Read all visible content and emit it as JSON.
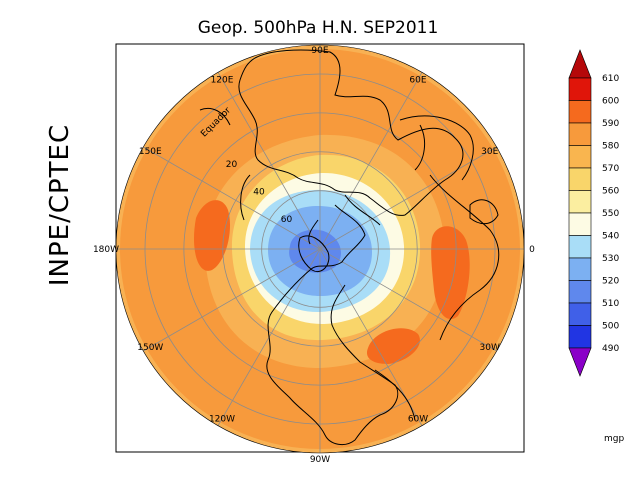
{
  "title": "Geop. 500hPa H.N. SEP2011",
  "side_label": "INPE/CPTEC",
  "map": {
    "projection": "north-polar-stereographic",
    "longitude_labels": [
      {
        "text": "90E",
        "lon": 90
      },
      {
        "text": "60E",
        "lon": 60
      },
      {
        "text": "30E",
        "lon": 30
      },
      {
        "text": "0",
        "lon": 0
      },
      {
        "text": "30W",
        "lon": -30
      },
      {
        "text": "60W",
        "lon": -60
      },
      {
        "text": "90W",
        "lon": -90
      },
      {
        "text": "120W",
        "lon": -120
      },
      {
        "text": "150W",
        "lon": -150
      },
      {
        "text": "180W",
        "lon": 180
      },
      {
        "text": "150E",
        "lon": 150
      },
      {
        "text": "120E",
        "lon": 120
      }
    ],
    "latitude_labels": [
      {
        "text": "Equador",
        "lat": 0
      },
      {
        "text": "20",
        "lat": 20
      },
      {
        "text": "40",
        "lat": 40
      },
      {
        "text": "60",
        "lat": 60
      }
    ]
  },
  "colorbar": {
    "unit": "mgp",
    "levels": [
      "610",
      "600",
      "590",
      "580",
      "570",
      "560",
      "550",
      "540",
      "530",
      "520",
      "510",
      "500",
      "490"
    ],
    "colors": [
      "#e0150a",
      "#f56a1e",
      "#f79a3c",
      "#f9b54f",
      "#f9d56a",
      "#fbeea0",
      "#fdfbe4",
      "#a9ddf7",
      "#7cb0f2",
      "#5f88ed",
      "#4060e8",
      "#2135e3",
      "#1a12d8"
    ],
    "top_arrow_color": "#b5080a",
    "bottom_arrow_color": "#8a00c8"
  },
  "field_colors": {
    "outer": "#f8b153",
    "warm": "#f79a3c",
    "hot": "#f56a1e",
    "light": "#f9d56a",
    "pale": "#fdfbe4",
    "cool": "#a9ddf7",
    "blue": "#7cb0f2",
    "deep": "#5f88ed"
  }
}
